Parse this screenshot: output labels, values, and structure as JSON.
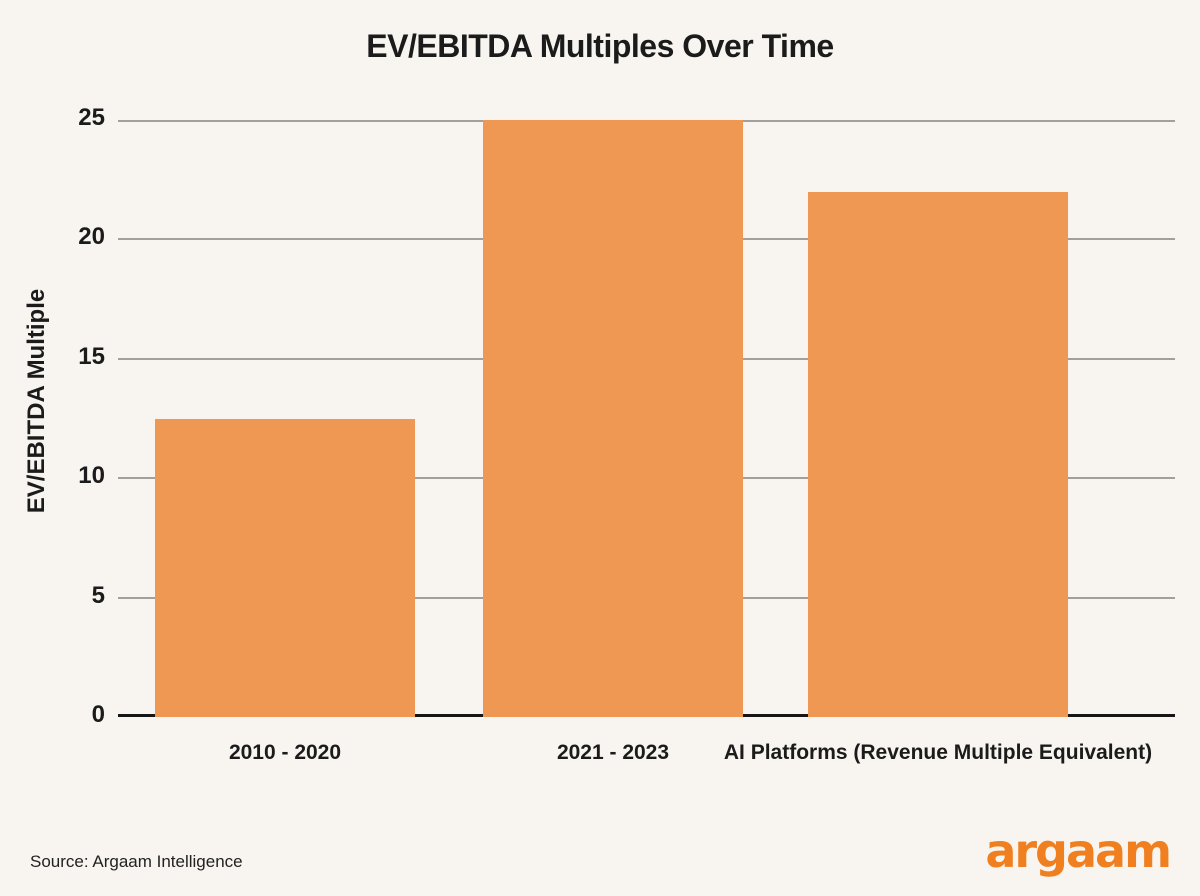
{
  "chart_data": {
    "type": "bar",
    "title": "EV/EBITDA Multiples Over Time",
    "xlabel": "",
    "ylabel": "EV/EBITDA Multiple",
    "categories": [
      "2010 - 2020",
      "2021 - 2023",
      "AI Platforms (Revenue Multiple Equivalent)"
    ],
    "values": [
      12.5,
      25,
      22
    ],
    "ylim": [
      0,
      25
    ],
    "yticks": [
      0,
      5,
      10,
      15,
      20,
      25
    ],
    "grid": true,
    "legend_position": "none",
    "bar_color": "#EF9854"
  },
  "footer": {
    "source": "Source: Argaam Intelligence",
    "logo_text": "argaam",
    "logo_color": "#F0801F"
  },
  "colors": {
    "background": "#F8F5F0",
    "gridline": "#A3A09B",
    "axis_line": "#161616",
    "text": "#1B1B1B"
  }
}
